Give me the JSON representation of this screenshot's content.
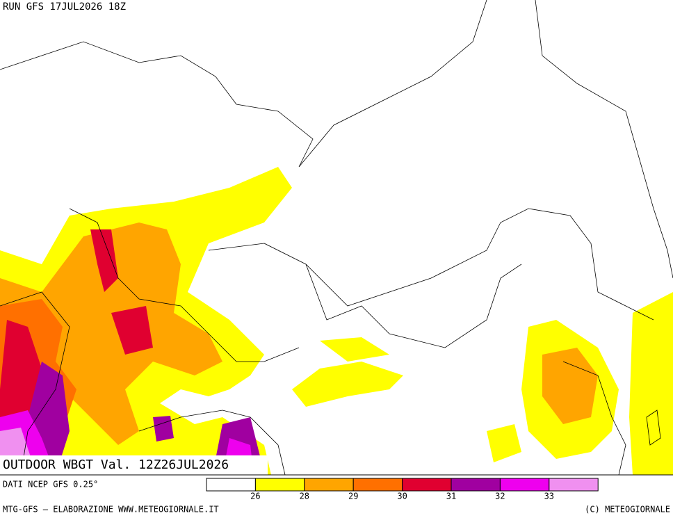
{
  "header": {
    "run": "RUN GFS 17JUL2026 18Z"
  },
  "map": {
    "title": "OUTDOOR WBGT Val. 12Z26JUL2026"
  },
  "legend": {
    "source": "DATI NCEP GFS 0.25°",
    "colors": [
      "#ffffff",
      "#ffff00",
      "#ffa500",
      "#ff7000",
      "#e00030",
      "#a000a0",
      "#ee00ee",
      "#f090f0"
    ],
    "ticks": [
      26,
      28,
      29,
      30,
      31,
      32,
      33
    ]
  },
  "footer": {
    "left": "MTG-GFS — ELABORAZIONE WWW.METEOGIORNALE.IT",
    "right": "(C) METEOGIORNALE"
  }
}
